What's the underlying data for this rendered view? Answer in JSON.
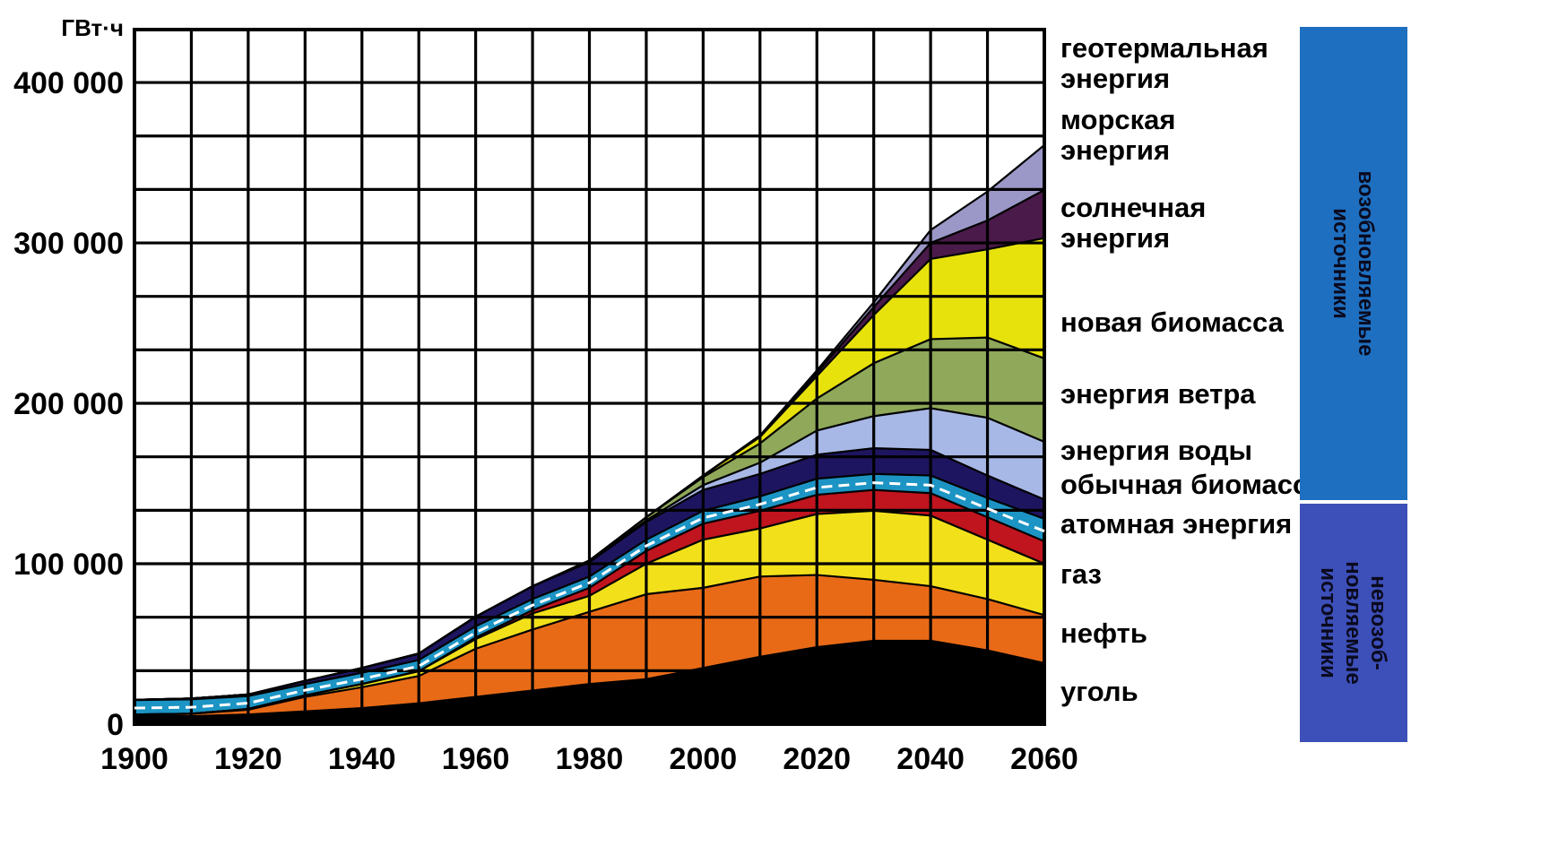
{
  "chart_data": {
    "type": "area",
    "title": "",
    "ylabel": "ГВт·ч",
    "xlabel": "",
    "xlim": [
      1900,
      2060
    ],
    "ylim": [
      0,
      430000
    ],
    "grid": true,
    "legend_placement": "right",
    "x": [
      1900,
      1910,
      1920,
      1930,
      1940,
      1950,
      1960,
      1970,
      1980,
      1990,
      2000,
      2010,
      2020,
      2030,
      2040,
      2050,
      2060
    ],
    "x_ticks": [
      "1900",
      "1920",
      "1940",
      "1960",
      "1980",
      "2000",
      "2020",
      "2040",
      "2060"
    ],
    "y_ticks": [
      "0",
      "100 000",
      "200 000",
      "300 000",
      "400 000"
    ],
    "series": [
      {
        "name": "уголь",
        "color": "#000000",
        "values": [
          5000,
          5000,
          6000,
          8000,
          10000,
          13000,
          17000,
          21000,
          25000,
          28000,
          35000,
          42000,
          48000,
          52000,
          52000,
          46000,
          38000
        ]
      },
      {
        "name": "нефть",
        "color": "#E86A17",
        "values": [
          1000,
          1500,
          3000,
          9000,
          13000,
          17000,
          30000,
          38000,
          45000,
          53000,
          50000,
          50000,
          45000,
          38000,
          34000,
          32000,
          30000
        ]
      },
      {
        "name": "газ",
        "color": "#F2E11A",
        "values": [
          0,
          0,
          500,
          1000,
          2000,
          3000,
          6000,
          10000,
          10000,
          19000,
          30000,
          30000,
          38000,
          43000,
          44000,
          37000,
          32000
        ]
      },
      {
        "name": "атомная энергия",
        "color": "#C0141E",
        "values": [
          0,
          0,
          0,
          0,
          0,
          0,
          1000,
          2000,
          5000,
          8000,
          10000,
          11000,
          12000,
          13000,
          14000,
          14000,
          14000
        ]
      },
      {
        "name": "обычная биомасса",
        "color": "#1C94C4",
        "values": [
          9000,
          9000,
          8000,
          7000,
          7000,
          7000,
          7000,
          7000,
          7000,
          7000,
          8000,
          9000,
          10000,
          10000,
          11000,
          12000,
          14000
        ]
      },
      {
        "name": "энергия воды",
        "color": "#1E1560",
        "values": [
          200,
          500,
          1000,
          2000,
          3000,
          4000,
          6000,
          8000,
          9000,
          11000,
          13000,
          14000,
          15000,
          16000,
          16000,
          14000,
          12000
        ]
      },
      {
        "name": "энергия ветра",
        "color": "#A8B8E6",
        "values": [
          0,
          0,
          0,
          0,
          0,
          0,
          0,
          0,
          500,
          1000,
          3000,
          7000,
          15000,
          20000,
          26000,
          36000,
          36000
        ]
      },
      {
        "name": "новая биомасса",
        "color": "#8FA85A",
        "values": [
          0,
          0,
          0,
          0,
          0,
          0,
          0,
          0,
          500,
          2000,
          5000,
          12000,
          20000,
          33000,
          43000,
          50000,
          52000
        ]
      },
      {
        "name": "солнечная энергия",
        "color": "#E8E20C",
        "values": [
          0,
          0,
          0,
          0,
          0,
          0,
          0,
          0,
          0,
          0,
          1000,
          4000,
          14000,
          30000,
          50000,
          55000,
          75000
        ]
      },
      {
        "name": "морская энергия",
        "color": "#4A1A4A",
        "values": [
          0,
          0,
          0,
          0,
          0,
          0,
          0,
          0,
          0,
          0,
          0,
          500,
          2000,
          5000,
          10000,
          18000,
          30000
        ]
      },
      {
        "name": "геотермальная энергия",
        "color": "#9B98C8",
        "values": [
          0,
          0,
          0,
          0,
          0,
          0,
          0,
          0,
          0,
          0,
          0,
          500,
          1500,
          3000,
          8000,
          18000,
          28000
        ]
      }
    ],
    "legend": [
      {
        "lines": [
          "геотермальная",
          "энергия"
        ]
      },
      {
        "lines": [
          "морская",
          "энергия"
        ]
      },
      {
        "lines": [
          "солнечная",
          "энергия"
        ]
      },
      {
        "lines": [
          "новая биомасса"
        ]
      },
      {
        "lines": [
          "энергия ветра"
        ]
      },
      {
        "lines": [
          "энергия воды"
        ]
      },
      {
        "lines": [
          "обычная биомасса"
        ]
      },
      {
        "lines": [
          "атомная энергия"
        ]
      },
      {
        "lines": [
          "газ"
        ]
      },
      {
        "lines": [
          "нефть"
        ]
      },
      {
        "lines": [
          "уголь"
        ]
      }
    ],
    "groups": [
      {
        "label_lines": [
          "возобновляемые",
          "источники"
        ],
        "color": "#1E6FC0"
      },
      {
        "label_lines": [
          "невозоб-",
          "новляемые",
          "источники"
        ],
        "color": "#3D4FB8"
      }
    ]
  }
}
